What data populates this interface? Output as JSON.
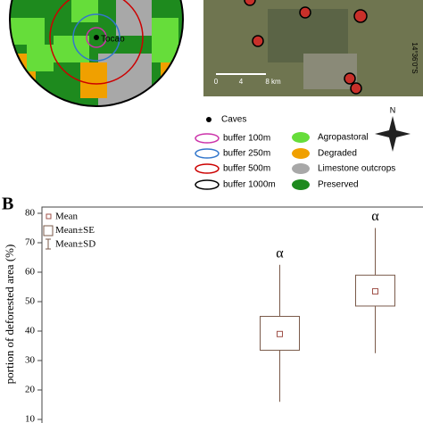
{
  "panel_a": {
    "map_label": "Tocao",
    "scale_labels": [
      "0",
      "4",
      "8 km"
    ],
    "coordinate": "14°36'0\"S",
    "legend": {
      "caves": "Caves",
      "buffers": [
        "buffer 100m",
        "buffer 250m",
        "buffer 500m",
        "buffer 1000m"
      ],
      "land_cover": [
        "Agropastoral",
        "Degraded",
        "Limestone outcrops",
        "Preserved"
      ],
      "north": "N"
    }
  },
  "panel_label": "B",
  "chart_data": {
    "type": "box",
    "y_label": "portion of deforested area (%)",
    "categories": [
      null,
      null
    ],
    "boxes": [
      {
        "mean": 39,
        "se": [
          33.5,
          45
        ],
        "sd": [
          16,
          62.5
        ],
        "annotation": "α"
      },
      {
        "mean": 53.5,
        "se": [
          48.5,
          59
        ],
        "sd": [
          32.5,
          75
        ],
        "annotation": "α"
      }
    ],
    "legend": [
      "Mean",
      "Mean±SE",
      "Mean±SD"
    ],
    "color": "#7a5a4a",
    "mean_color": "#a0524a",
    "ylim": [
      10,
      80
    ],
    "yticks": [
      10,
      20,
      30,
      40,
      50,
      60,
      70,
      80
    ]
  }
}
